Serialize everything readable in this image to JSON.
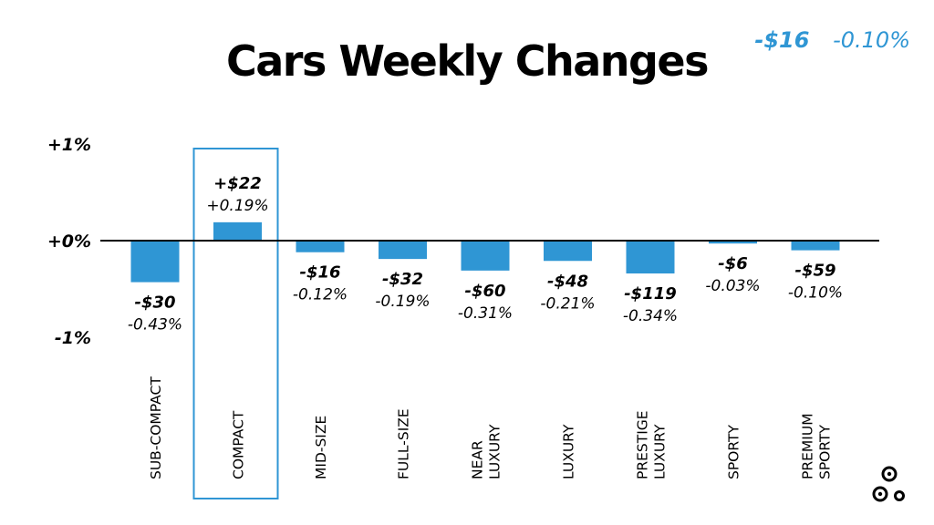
{
  "summary": {
    "dollar": "-$16",
    "percent": "-0.10%"
  },
  "chart_data": {
    "type": "bar",
    "title": "Cars Weekly Changes",
    "y_ticks": [
      "+1%",
      "+0%",
      "-1%"
    ],
    "ylim": [
      -1,
      1
    ],
    "categories": [
      "SUB-COMPACT",
      "COMPACT",
      "MID-SIZE",
      "FULL-SIZE",
      "NEAR LUXURY",
      "LUXURY",
      "PRESTIGE LUXURY",
      "SPORTY",
      "PREMIUM SPORTY"
    ],
    "category_lines": [
      [
        "SUB-COMPACT"
      ],
      [
        "COMPACT"
      ],
      [
        "MID-SIZE"
      ],
      [
        "FULL-SIZE"
      ],
      [
        "NEAR",
        "LUXURY"
      ],
      [
        "LUXURY"
      ],
      [
        "PRESTIGE",
        "LUXURY"
      ],
      [
        "SPORTY"
      ],
      [
        "PREMIUM",
        "SPORTY"
      ]
    ],
    "values": [
      -0.43,
      0.19,
      -0.12,
      -0.19,
      -0.31,
      -0.21,
      -0.34,
      -0.03,
      -0.1
    ],
    "dollar_labels": [
      "-$30",
      "+$22",
      "-$16",
      "-$32",
      "-$60",
      "-$48",
      "-$119",
      "-$6",
      "-$59"
    ],
    "percent_labels": [
      "-0.43%",
      "+0.19%",
      "-0.12%",
      "-0.19%",
      "-0.31%",
      "-0.21%",
      "-0.34%",
      "-0.03%",
      "-0.10%"
    ],
    "highlighted_category": "COMPACT",
    "bar_color": "#2f96d4",
    "axis_color": "#000000",
    "highlight_color": "#2f96d4"
  }
}
